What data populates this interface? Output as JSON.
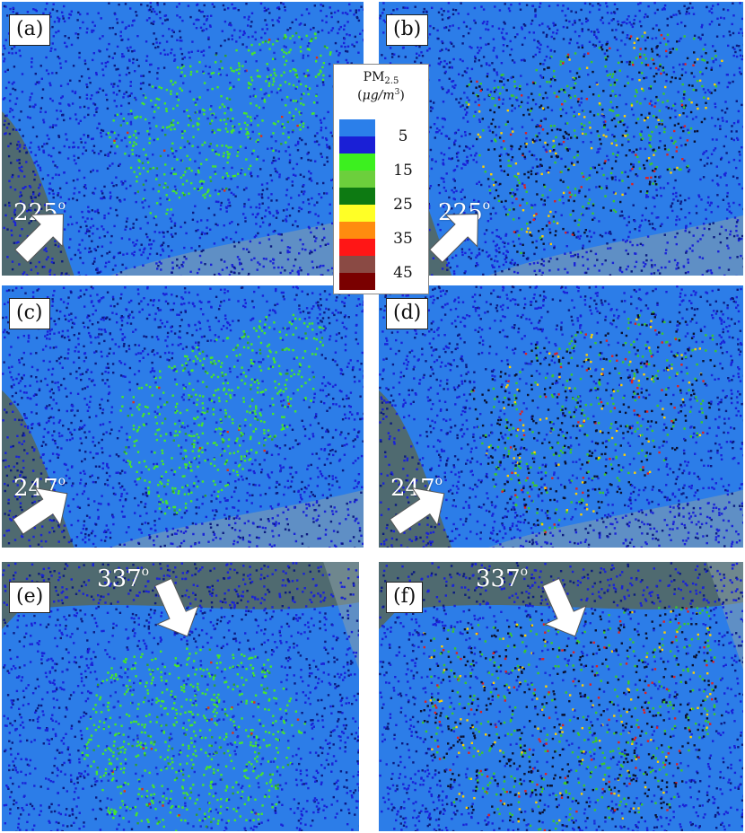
{
  "panels": [
    {
      "label": "(a)",
      "angle": "225",
      "variant": "a"
    },
    {
      "label": "(b)",
      "angle": "225",
      "variant": "b"
    },
    {
      "label": "(c)",
      "angle": "247",
      "variant": "c"
    },
    {
      "label": "(d)",
      "angle": "247",
      "variant": "d"
    },
    {
      "label": "(e)",
      "angle": "337",
      "variant": "e"
    },
    {
      "label": "(f)",
      "angle": "337",
      "variant": "f"
    }
  ],
  "angle_unit": "o",
  "legend": {
    "title_main": "PM",
    "title_sub": "2.5",
    "unit_open": "(",
    "unit": "μg/m",
    "unit_exp": "3",
    "unit_close": ")",
    "colors": [
      "#2b7fea",
      "#1a1fd6",
      "#3cf01f",
      "#6ccf3c",
      "#0d7a12",
      "#ffff26",
      "#ff8c0f",
      "#ff1616",
      "#8a4a44",
      "#7a0000"
    ],
    "ticks": [
      "5",
      "15",
      "25",
      "35",
      "45"
    ]
  },
  "wind_directions_deg": [
    225,
    225,
    247,
    247,
    337,
    337
  ]
}
